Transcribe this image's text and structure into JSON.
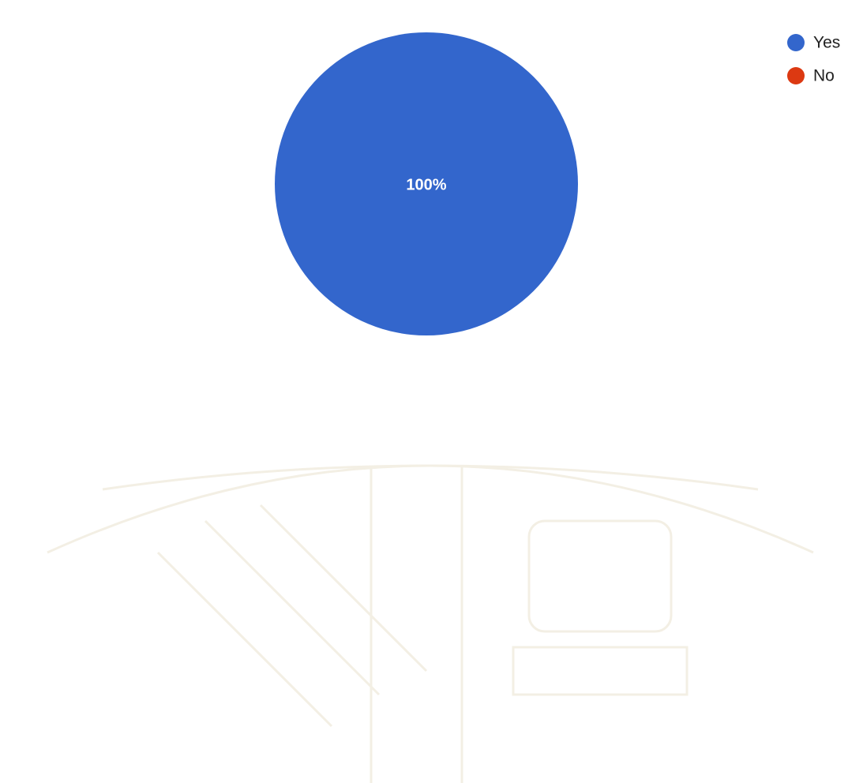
{
  "chart_data": {
    "type": "pie",
    "categories": [
      "Yes",
      "No"
    ],
    "values": [
      100,
      0
    ],
    "value_labels": [
      "100%",
      null
    ],
    "colors": [
      "#3366cc",
      "#dc3912"
    ],
    "legend": "top-right"
  }
}
